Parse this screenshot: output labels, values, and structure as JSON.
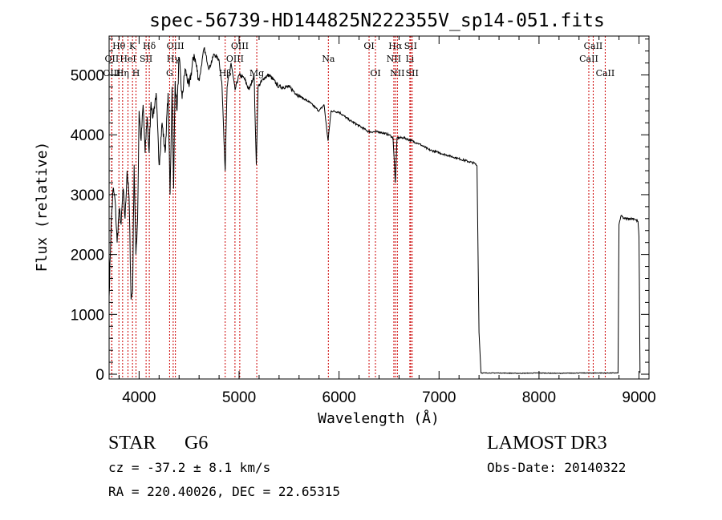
{
  "chart_data": {
    "type": "line",
    "title": "spec-56739-HD144825N222355V_sp14-051.fits",
    "xlabel": "Wavelength (Å)",
    "ylabel": "Flux (relative)",
    "xlim": [
      3700,
      9100
    ],
    "ylim": [
      -80,
      5650
    ],
    "xticks": [
      4000,
      5000,
      6000,
      7000,
      8000,
      9000
    ],
    "yticks": [
      0,
      1000,
      2000,
      3000,
      4000,
      5000
    ],
    "x": [
      3700,
      3720,
      3740,
      3760,
      3780,
      3800,
      3820,
      3840,
      3860,
      3880,
      3900,
      3920,
      3935,
      3950,
      3968,
      3985,
      4000,
      4020,
      4040,
      4060,
      4080,
      4100,
      4120,
      4140,
      4170,
      4200,
      4230,
      4260,
      4290,
      4310,
      4330,
      4345,
      4360,
      4380,
      4400,
      4430,
      4460,
      4500,
      4550,
      4600,
      4650,
      4700,
      4750,
      4800,
      4830,
      4861,
      4880,
      4920,
      4960,
      5000,
      5050,
      5100,
      5150,
      5172,
      5190,
      5250,
      5300,
      5400,
      5500,
      5600,
      5700,
      5800,
      5850,
      5890,
      5920,
      6000,
      6100,
      6200,
      6300,
      6400,
      6500,
      6540,
      6563,
      6580,
      6650,
      6800,
      6900,
      7000,
      7100,
      7200,
      7300,
      7360,
      7380,
      7400,
      7420,
      7500,
      7600,
      7800,
      8000,
      8200,
      8400,
      8600,
      8700,
      8790,
      8800,
      8820,
      8850,
      8900,
      8950,
      8990,
      9000,
      9010
    ],
    "y": [
      1300,
      2500,
      3100,
      2900,
      2200,
      2750,
      2500,
      3100,
      2600,
      3400,
      2950,
      1250,
      1400,
      3500,
      2000,
      2600,
      4400,
      3900,
      4500,
      3700,
      4300,
      3700,
      4550,
      4300,
      4700,
      3500,
      4200,
      3700,
      4700,
      3000,
      4800,
      3100,
      4900,
      4400,
      5300,
      4600,
      5100,
      4800,
      5350,
      4900,
      5450,
      5100,
      5350,
      5250,
      4800,
      3400,
      4800,
      5200,
      4750,
      5000,
      4950,
      4750,
      5000,
      3500,
      4800,
      4950,
      5000,
      4800,
      4800,
      4650,
      4550,
      4400,
      4500,
      3900,
      4400,
      4380,
      4250,
      4150,
      4050,
      4050,
      4000,
      3950,
      3200,
      3950,
      3950,
      3850,
      3750,
      3700,
      3650,
      3600,
      3550,
      3520,
      3480,
      700,
      20,
      20,
      20,
      15,
      20,
      15,
      20,
      20,
      20,
      20,
      2500,
      2650,
      2600,
      2600,
      2600,
      2550,
      2300,
      20
    ],
    "lines": [
      {
        "label": "Hθ",
        "x": 3798,
        "row": 0
      },
      {
        "label": "OII",
        "x": 3727,
        "row": 1
      },
      {
        "label": "OIII",
        "x": 3727,
        "row": 2
      },
      {
        "label": "K",
        "x": 3934,
        "row": 0
      },
      {
        "label": "HeI",
        "x": 3889,
        "row": 1
      },
      {
        "label": "Hη",
        "x": 3835,
        "row": 2
      },
      {
        "label": "SII",
        "x": 4070,
        "row": 1
      },
      {
        "label": "H",
        "x": 3969,
        "row": 2
      },
      {
        "label": "Hδ",
        "x": 4102,
        "row": 0
      },
      {
        "label": "OIII",
        "x": 4363,
        "row": 0
      },
      {
        "label": "Hγ",
        "x": 4341,
        "row": 1
      },
      {
        "label": "G",
        "x": 4305,
        "row": 2
      },
      {
        "label": "OIII",
        "x": 5007,
        "row": 0
      },
      {
        "label": "OIII",
        "x": 4959,
        "row": 1
      },
      {
        "label": "Hβ",
        "x": 4861,
        "row": 2
      },
      {
        "label": "Mg",
        "x": 5177,
        "row": 2
      },
      {
        "label": "Na",
        "x": 5893,
        "row": 1
      },
      {
        "label": "OI",
        "x": 6300,
        "row": 0
      },
      {
        "label": "OI",
        "x": 6364,
        "row": 2
      },
      {
        "label": "Hα",
        "x": 6563,
        "row": 0
      },
      {
        "label": "SII",
        "x": 6716,
        "row": 0
      },
      {
        "label": "NII",
        "x": 6548,
        "row": 1
      },
      {
        "label": "Li",
        "x": 6708,
        "row": 1
      },
      {
        "label": "NII",
        "x": 6583,
        "row": 2
      },
      {
        "label": "SII",
        "x": 6731,
        "row": 2
      },
      {
        "label": "CaII",
        "x": 8542,
        "row": 0
      },
      {
        "label": "CaII",
        "x": 8498,
        "row": 1
      },
      {
        "label": "CaII",
        "x": 8662,
        "row": 2
      }
    ]
  },
  "info": {
    "obj_class": "STAR",
    "subclass": "G6",
    "survey": "LAMOST DR3",
    "cz": "cz = -37.2 ± 8.1 km/s",
    "obs_date": "Obs-Date: 20140322",
    "coords": "RA = 220.40026, DEC =  22.65315"
  },
  "colors": {
    "line_marker": "#cc0000",
    "spectrum": "#000000"
  }
}
